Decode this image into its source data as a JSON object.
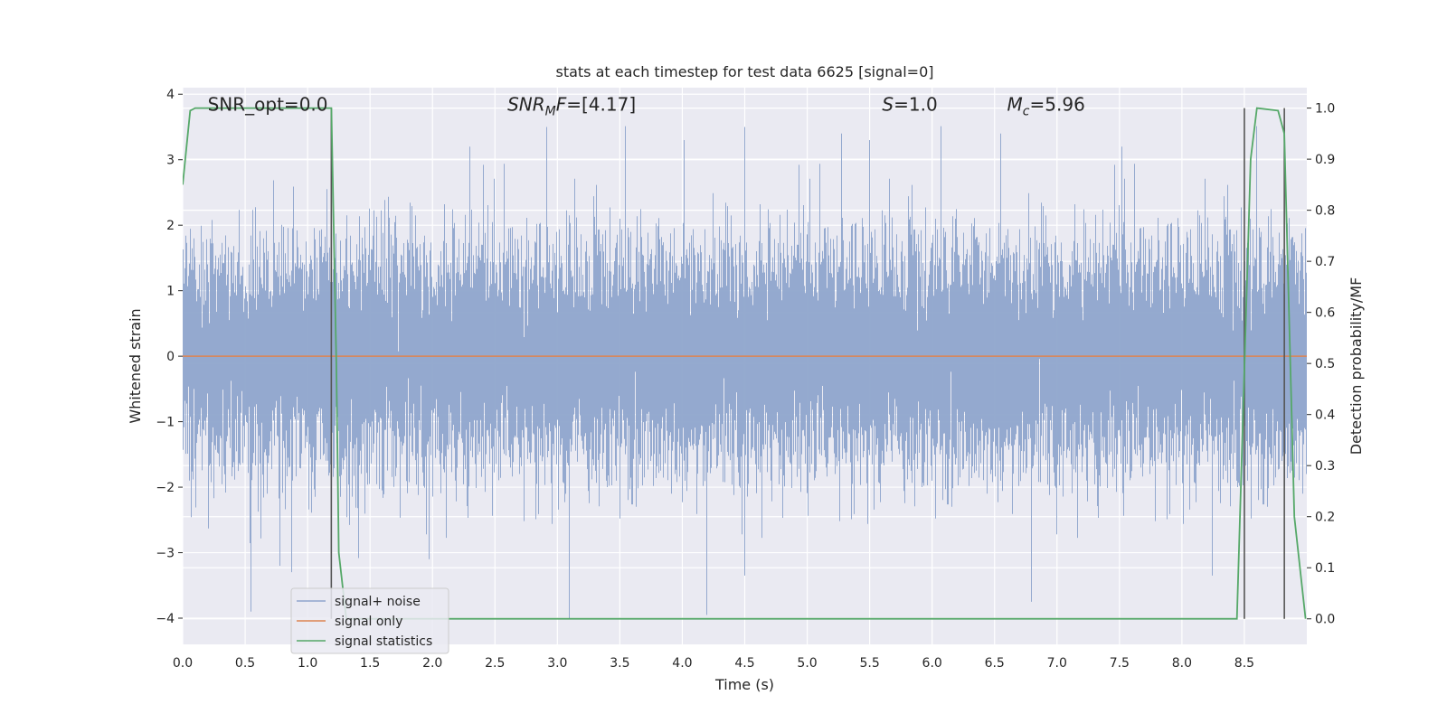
{
  "chart_data": {
    "type": "line",
    "title": "stats at each timestep for test data 6625 [signal=0]",
    "xlabel": "Time (s)",
    "ylabel": "Whitened strain",
    "y2label": "Detection probability/MF",
    "xlim": [
      0.0,
      9.0
    ],
    "ylim": [
      -4.4,
      4.1
    ],
    "y2lim": [
      -0.05,
      1.04
    ],
    "xticks": [
      0.0,
      0.5,
      1.0,
      1.5,
      2.0,
      2.5,
      3.0,
      3.5,
      4.0,
      4.5,
      5.0,
      5.5,
      6.0,
      6.5,
      7.0,
      7.5,
      8.0,
      8.5
    ],
    "xtick_labels": [
      "0.0",
      "0.5",
      "1.0",
      "1.5",
      "2.0",
      "2.5",
      "3.0",
      "3.5",
      "4.0",
      "4.5",
      "5.0",
      "5.5",
      "6.0",
      "6.5",
      "7.0",
      "7.5",
      "8.0",
      "8.5"
    ],
    "yticks": [
      -4,
      -3,
      -2,
      -1,
      0,
      1,
      2,
      3,
      4
    ],
    "ytick_labels": [
      "−4",
      "−3",
      "−2",
      "−1",
      "0",
      "1",
      "2",
      "3",
      "4"
    ],
    "y2ticks": [
      0.0,
      0.1,
      0.2,
      0.3,
      0.4,
      0.5,
      0.6,
      0.7,
      0.8,
      0.9,
      1.0
    ],
    "y2tick_labels": [
      "0.0",
      "0.1",
      "0.2",
      "0.3",
      "0.4",
      "0.5",
      "0.6",
      "0.7",
      "0.8",
      "0.9",
      "1.0"
    ],
    "grid": true,
    "legend_position": "lower-left",
    "annotations": [
      {
        "text": "SNR_opt=0.0",
        "x": 0.2,
        "y": 3.75
      },
      {
        "text": "SNR_MF=[4.17]",
        "x": 2.6,
        "y": 3.75
      },
      {
        "text": "S=1.0",
        "x": 5.6,
        "y": 3.75
      },
      {
        "text": "M_c=5.96",
        "x": 6.6,
        "y": 3.75
      }
    ],
    "series": [
      {
        "name": "signal+ noise",
        "color": "#8fa5cc",
        "kind": "noise",
        "sample_rate": 2048,
        "std": 1.0,
        "extremes": [
          {
            "x": 0.55,
            "y": -3.9
          },
          {
            "x": 0.78,
            "y": -3.2
          },
          {
            "x": 1.16,
            "y": 2.55
          },
          {
            "x": 1.98,
            "y": -3.1
          },
          {
            "x": 2.3,
            "y": 3.2
          },
          {
            "x": 2.92,
            "y": 3.5
          },
          {
            "x": 3.1,
            "y": -4.0
          },
          {
            "x": 4.02,
            "y": 3.3
          },
          {
            "x": 4.2,
            "y": -3.95
          },
          {
            "x": 4.5,
            "y": 3.5
          },
          {
            "x": 4.5,
            "y": -3.35
          },
          {
            "x": 5.28,
            "y": 3.4
          },
          {
            "x": 5.5,
            "y": 3.3
          },
          {
            "x": 6.55,
            "y": 3.4
          },
          {
            "x": 6.8,
            "y": -3.75
          },
          {
            "x": 7.52,
            "y": 3.2
          },
          {
            "x": 8.25,
            "y": -3.35
          },
          {
            "x": 8.6,
            "y": 2.95
          }
        ]
      },
      {
        "name": "signal only",
        "color": "#dd8452",
        "kind": "line",
        "x": [
          0.0,
          9.0
        ],
        "y": [
          0.0,
          0.0
        ]
      },
      {
        "name": "signal statistics",
        "color": "#55a868",
        "kind": "line",
        "axis": "right",
        "x": [
          0.0,
          0.06,
          0.1,
          0.15,
          0.5,
          1.0,
          1.19,
          1.23,
          1.25,
          1.31,
          1.35,
          2.0,
          4.0,
          6.0,
          8.0,
          8.44,
          8.55,
          8.6,
          8.77,
          8.82,
          8.9,
          8.99
        ],
        "y": [
          0.85,
          0.995,
          1.0,
          1.0,
          1.0,
          1.0,
          1.0,
          0.5,
          0.13,
          0.0,
          0.0,
          0.0,
          0.0,
          0.0,
          0.0,
          0.0,
          0.9,
          1.0,
          0.995,
          0.95,
          0.2,
          0.0
        ]
      }
    ],
    "markers": {
      "color": "#555555",
      "x": [
        1.19,
        8.5,
        8.82
      ]
    }
  }
}
